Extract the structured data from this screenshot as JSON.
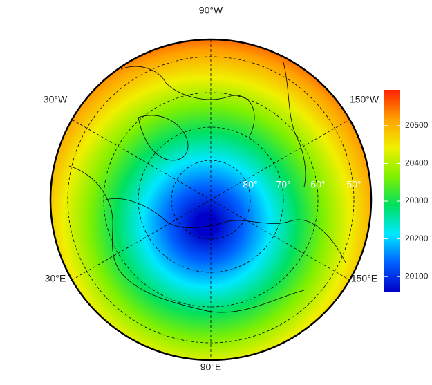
{
  "map": {
    "longitude_labels": [
      "90°W",
      "30°W",
      "150°W",
      "30°E",
      "150°E",
      "90°E"
    ],
    "latitude_labels": [
      "80°",
      "70°",
      "60°",
      "50°"
    ],
    "colorbar": {
      "lim": [
        20060,
        20595
      ],
      "ticks": [
        20100,
        20200,
        20300,
        20400,
        20500
      ],
      "colors": [
        "#0000c8",
        "#0060ff",
        "#00e8ff",
        "#00e060",
        "#80f000",
        "#f0f000",
        "#ffa000",
        "#ff2000"
      ]
    }
  }
}
